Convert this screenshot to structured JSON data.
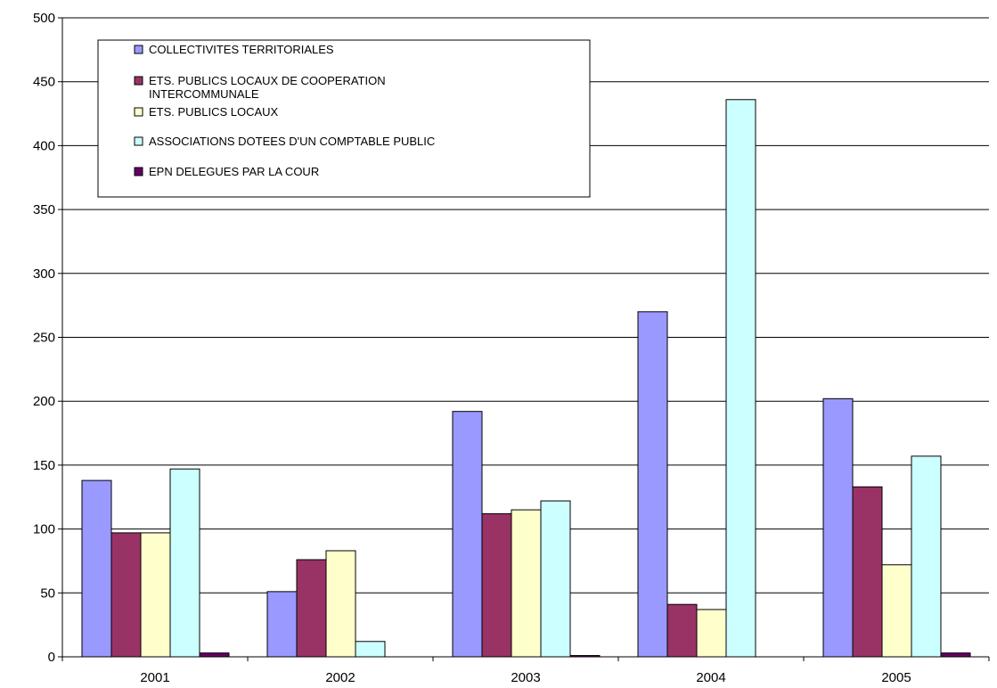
{
  "chart_data": {
    "type": "bar",
    "categories": [
      "2001",
      "2002",
      "2003",
      "2004",
      "2005"
    ],
    "series": [
      {
        "name": "COLLECTIVITES TERRITORIALES",
        "color": "#9999ff",
        "values": [
          138,
          51,
          192,
          270,
          202
        ]
      },
      {
        "name": "ETS. PUBLICS LOCAUX DE COOPERATION INTERCOMMUNALE",
        "color": "#993366",
        "values": [
          97,
          76,
          112,
          41,
          133
        ]
      },
      {
        "name": "ETS. PUBLICS LOCAUX",
        "color": "#ffffcc",
        "values": [
          97,
          83,
          115,
          37,
          72
        ]
      },
      {
        "name": "ASSOCIATIONS DOTEES D'UN COMPTABLE PUBLIC",
        "color": "#ccffff",
        "values": [
          147,
          12,
          122,
          436,
          157
        ]
      },
      {
        "name": "EPN DELEGUES PAR LA COUR",
        "color": "#660066",
        "values": [
          3,
          0,
          1,
          0,
          3
        ]
      }
    ],
    "ylim": [
      0,
      500
    ],
    "yticks": [
      0,
      50,
      100,
      150,
      200,
      250,
      300,
      350,
      400,
      450,
      500
    ],
    "grid": true,
    "legend_position": "top-left",
    "title": "",
    "xlabel": "",
    "ylabel": ""
  }
}
